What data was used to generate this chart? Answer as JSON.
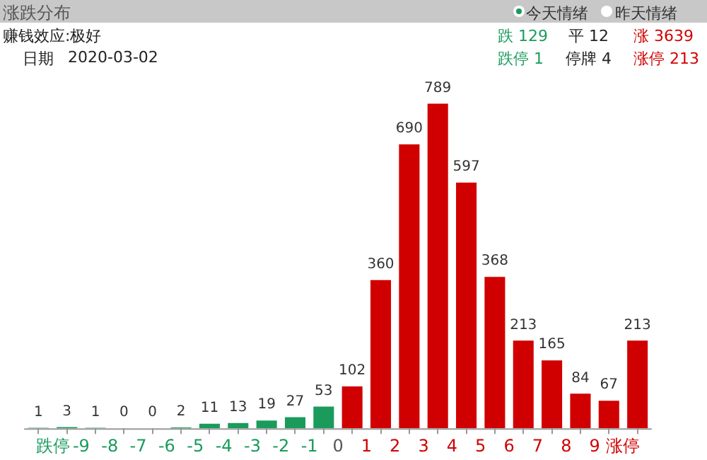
{
  "chart_data": {
    "type": "bar",
    "title": "涨跌分布",
    "x": [
      -10.5,
      -9.5,
      -8.5,
      -7.5,
      -6.5,
      -5.5,
      -4.5,
      -3.5,
      -2.5,
      -1.5,
      -0.5,
      0.5,
      1.5,
      2.5,
      3.5,
      4.5,
      5.5,
      6.5,
      7.5,
      8.5,
      9.5,
      10.5
    ],
    "values": [
      1,
      3,
      1,
      0,
      0,
      2,
      11,
      13,
      19,
      27,
      53,
      102,
      360,
      690,
      789,
      597,
      368,
      213,
      165,
      84,
      67,
      213
    ],
    "colors": [
      "#1a9b5c",
      "#1a9b5c",
      "#1a9b5c",
      "#1a9b5c",
      "#1a9b5c",
      "#1a9b5c",
      "#1a9b5c",
      "#1a9b5c",
      "#1a9b5c",
      "#1a9b5c",
      "#1a9b5c",
      "#d10000",
      "#d10000",
      "#d10000",
      "#d10000",
      "#d10000",
      "#d10000",
      "#d10000",
      "#d10000",
      "#d10000",
      "#d10000",
      "#d10000"
    ],
    "xlim": [
      -11,
      11
    ],
    "xticks": [
      {
        "value": -10,
        "label": "跌停"
      },
      -9,
      -8,
      -7,
      -6,
      -5,
      -4,
      -3,
      -2,
      -1,
      0,
      1,
      2,
      3,
      4,
      5,
      6,
      7,
      8,
      9,
      {
        "value": 10,
        "label": "涨停"
      }
    ],
    "tick_labels": "x",
    "data_labels": true,
    "annotations": [
      "今天情绪",
      "昨天情绪",
      "赚钱效应:极好",
      "日期",
      "2020-03-02",
      "跌 129",
      "平 12",
      "涨 3639",
      "跌停 1",
      "停牌 4",
      "涨停 213"
    ]
  }
}
